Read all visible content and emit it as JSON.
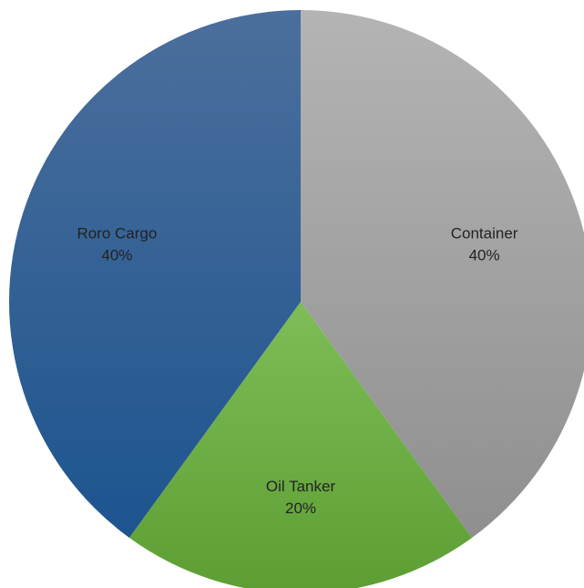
{
  "chart_data": {
    "type": "pie",
    "title": "",
    "slices": [
      {
        "label": "Container",
        "value": 40,
        "pct_label": "40%",
        "color": "#a3a3a3",
        "color_light": "#b4b4b4",
        "color_dark": "#8f8f8f"
      },
      {
        "label": "Oil Tanker",
        "value": 20,
        "pct_label": "20%",
        "color": "#6aad3c",
        "color_light": "#7ebd57",
        "color_dark": "#5c9e33"
      },
      {
        "label": "Roro Cargo",
        "value": 40,
        "pct_label": "40%",
        "color": "#2f5f95",
        "color_light": "#4b6f9c",
        "color_dark": "#1d548f"
      }
    ],
    "start_angle_deg": 0,
    "direction": "clockwise",
    "legend": "none",
    "background": "#ffffff"
  }
}
